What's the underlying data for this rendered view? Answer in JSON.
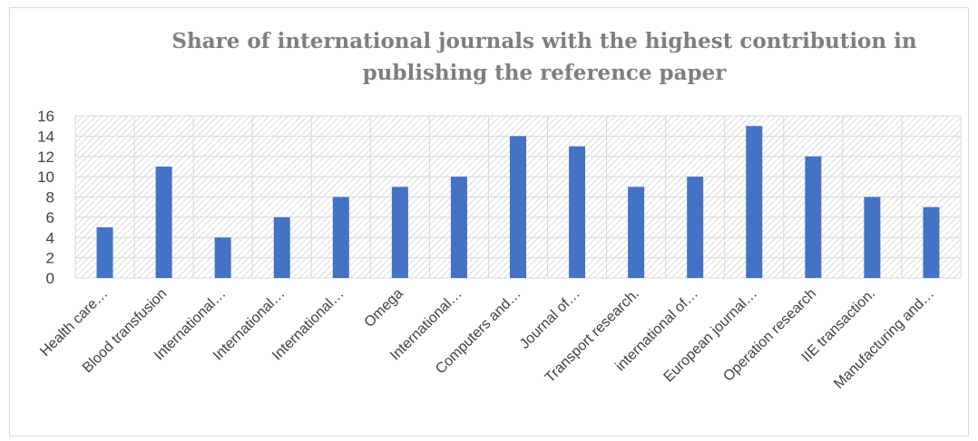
{
  "chart_data": {
    "type": "bar",
    "title": "Share of international journals with the highest contribution in publishing the reference paper",
    "xlabel": "",
    "ylabel": "",
    "ylim": [
      0,
      16
    ],
    "yticks": [
      0,
      2,
      4,
      6,
      8,
      10,
      12,
      14,
      16
    ],
    "grid": true,
    "legend": "none",
    "bar_color": "#4472c4",
    "categories": [
      "Health care…",
      "Blood transfusion",
      "International…",
      "International…",
      "International…",
      "Omega",
      "International…",
      "Computers and…",
      "Journal of…",
      "Transport research.",
      "international of…",
      "European journal…",
      "Operation research",
      "IIE transaction.",
      "Manufacturing and…"
    ],
    "values": [
      5,
      11,
      4,
      6,
      8,
      9,
      10,
      14,
      13,
      9,
      10,
      15,
      12,
      8,
      7
    ]
  }
}
